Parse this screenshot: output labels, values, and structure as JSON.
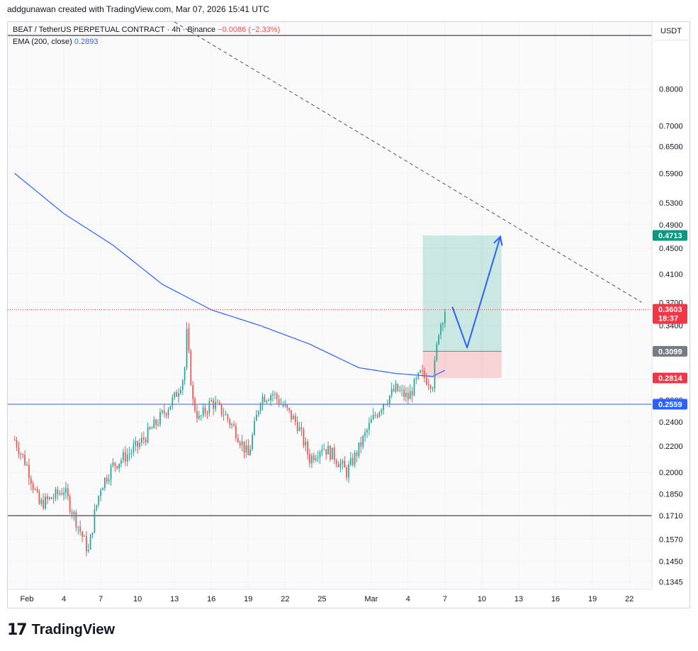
{
  "caption": "addgunawan created with TradingView.com, Mar 07, 2026 15:41 UTC",
  "legend": {
    "symbol": "BEAT / TetherUS PERPETUAL CONTRACT · 4h · Binance",
    "change": "−0.0086 (−2.33%)",
    "ema_label": "EMA (200, close)",
    "ema_value": "0.2893"
  },
  "axis": {
    "currency": "USDT"
  },
  "brand": {
    "name": "TradingView",
    "mark": "17"
  },
  "colors": {
    "up": "#26a69a",
    "down": "#ef5350",
    "ema": "#2962ff",
    "arrow": "#2962ff"
  },
  "chart_data": {
    "type": "candlestick",
    "y_scale": "log",
    "y_ticks": [
      "0.8000",
      "0.7000",
      "0.6500",
      "0.5900",
      "0.5300",
      "0.4900",
      "0.4500",
      "0.4100",
      "0.3700",
      "0.3400",
      "0.2800",
      "0.2600",
      "0.2400",
      "0.2200",
      "0.2000",
      "0.1850",
      "0.1710",
      "0.1570",
      "0.1450",
      "0.1345"
    ],
    "x_ticks": [
      {
        "label": "Feb",
        "date": "2026-02-01"
      },
      {
        "label": "4",
        "date": "2026-02-04"
      },
      {
        "label": "7",
        "date": "2026-02-07"
      },
      {
        "label": "10",
        "date": "2026-02-10"
      },
      {
        "label": "13",
        "date": "2026-02-13"
      },
      {
        "label": "16",
        "date": "2026-02-16"
      },
      {
        "label": "19",
        "date": "2026-02-19"
      },
      {
        "label": "22",
        "date": "2026-02-22"
      },
      {
        "label": "25",
        "date": "2026-02-25"
      },
      {
        "label": "Mar",
        "date": "2026-03-01"
      },
      {
        "label": "4",
        "date": "2026-03-04"
      },
      {
        "label": "7",
        "date": "2026-03-07"
      },
      {
        "label": "10",
        "date": "2026-03-10"
      },
      {
        "label": "13",
        "date": "2026-03-13"
      },
      {
        "label": "16",
        "date": "2026-03-16"
      },
      {
        "label": "19",
        "date": "2026-03-19"
      },
      {
        "label": "22",
        "date": "2026-03-22"
      }
    ],
    "price_anchors": [
      {
        "date": "2026-01-31",
        "price": 0.225
      },
      {
        "date": "2026-02-01",
        "price": 0.205
      },
      {
        "date": "2026-02-02",
        "price": 0.178
      },
      {
        "date": "2026-02-03",
        "price": 0.182
      },
      {
        "date": "2026-02-04",
        "price": 0.188
      },
      {
        "date": "2026-02-05",
        "price": 0.168
      },
      {
        "date": "2026-02-06",
        "price": 0.15
      },
      {
        "date": "2026-02-06.5",
        "price": 0.172
      },
      {
        "date": "2026-02-07",
        "price": 0.19
      },
      {
        "date": "2026-02-08",
        "price": 0.205
      },
      {
        "date": "2026-02-09",
        "price": 0.212
      },
      {
        "date": "2026-02-10",
        "price": 0.22
      },
      {
        "date": "2026-02-11",
        "price": 0.232
      },
      {
        "date": "2026-02-12",
        "price": 0.246
      },
      {
        "date": "2026-02-13",
        "price": 0.262
      },
      {
        "date": "2026-02-13.8",
        "price": 0.285
      },
      {
        "date": "2026-02-14",
        "price": 0.33
      },
      {
        "date": "2026-02-14.5",
        "price": 0.258
      },
      {
        "date": "2026-02-15",
        "price": 0.242
      },
      {
        "date": "2026-02-16",
        "price": 0.258
      },
      {
        "date": "2026-02-17",
        "price": 0.248
      },
      {
        "date": "2026-02-18",
        "price": 0.232
      },
      {
        "date": "2026-02-19",
        "price": 0.212
      },
      {
        "date": "2026-02-20",
        "price": 0.262
      },
      {
        "date": "2026-02-21",
        "price": 0.266
      },
      {
        "date": "2026-02-22",
        "price": 0.252
      },
      {
        "date": "2026-02-23",
        "price": 0.238
      },
      {
        "date": "2026-02-24",
        "price": 0.21
      },
      {
        "date": "2026-02-25",
        "price": 0.22
      },
      {
        "date": "2026-02-26",
        "price": 0.212
      },
      {
        "date": "2026-02-27",
        "price": 0.2
      },
      {
        "date": "2026-02-28",
        "price": 0.218
      },
      {
        "date": "2026-03-01",
        "price": 0.24
      },
      {
        "date": "2026-03-02",
        "price": 0.258
      },
      {
        "date": "2026-03-03",
        "price": 0.27
      },
      {
        "date": "2026-03-04",
        "price": 0.262
      },
      {
        "date": "2026-03-05",
        "price": 0.285
      },
      {
        "date": "2026-03-06",
        "price": 0.276
      },
      {
        "date": "2026-03-06.5",
        "price": 0.335
      },
      {
        "date": "2026-03-07",
        "price": 0.3603
      }
    ],
    "ema200": [
      {
        "date": "2026-01-31",
        "price": 0.59
      },
      {
        "date": "2026-02-04",
        "price": 0.51
      },
      {
        "date": "2026-02-08",
        "price": 0.455
      },
      {
        "date": "2026-02-12",
        "price": 0.395
      },
      {
        "date": "2026-02-16",
        "price": 0.36
      },
      {
        "date": "2026-02-20",
        "price": 0.34
      },
      {
        "date": "2026-02-24",
        "price": 0.318
      },
      {
        "date": "2026-02-28",
        "price": 0.292
      },
      {
        "date": "2026-03-03",
        "price": 0.286
      },
      {
        "date": "2026-03-06",
        "price": 0.283
      },
      {
        "date": "2026-03-07",
        "price": 0.2893
      }
    ],
    "horizontal_lines": [
      {
        "price": 0.2559,
        "color": "#2962ff"
      },
      {
        "price": 0.171,
        "color": "#131722"
      }
    ],
    "trendline": {
      "from": {
        "date": "2026-02-13",
        "price": 1.02
      },
      "to": {
        "date": "2026-03-23",
        "price": 0.37
      },
      "style": "dashed"
    },
    "position": {
      "entry": 0.3099,
      "target": 0.4713,
      "stop": 0.2814,
      "from_date": "2026-03-05.2",
      "to_date": "2026-03-11.6"
    },
    "projection": [
      {
        "date": "2026-03-07.6",
        "price": 0.364
      },
      {
        "date": "2026-03-08.8",
        "price": 0.314
      },
      {
        "date": "2026-03-11.5",
        "price": 0.469
      }
    ],
    "price_labels": [
      {
        "text": "0.4713",
        "price": 0.4713,
        "bg": "#089981"
      },
      {
        "text": "0.3603",
        "sub": "18:37",
        "price": 0.3603,
        "bg": "#f23645"
      },
      {
        "text": "0.3099",
        "price": 0.3099,
        "bg": "#787b86"
      },
      {
        "text": "0.2814",
        "price": 0.2814,
        "bg": "#f23645"
      },
      {
        "text": "0.2559",
        "price": 0.2559,
        "bg": "#2962ff"
      }
    ],
    "last_price": 0.3603
  }
}
